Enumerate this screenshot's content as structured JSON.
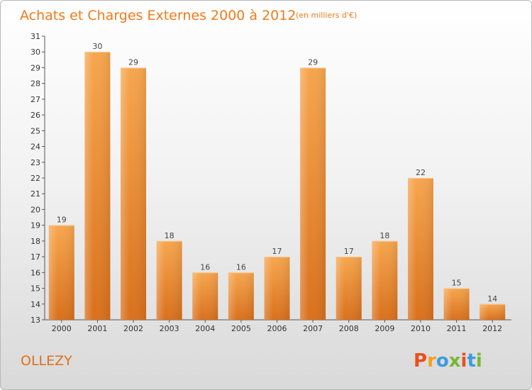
{
  "chart_data": {
    "type": "bar",
    "title": "Achats et Charges Externes 2000 à 2012",
    "subtitle": "(en milliers d'€)",
    "categories": [
      "2000",
      "2001",
      "2002",
      "2003",
      "2004",
      "2005",
      "2006",
      "2007",
      "2008",
      "2009",
      "2010",
      "2011",
      "2012"
    ],
    "values": [
      19,
      30,
      29,
      18,
      16,
      16,
      17,
      29,
      17,
      18,
      22,
      15,
      14
    ],
    "ylim": [
      13,
      31
    ],
    "yticks": [
      "13",
      "14",
      "15",
      "16",
      "17",
      "18",
      "19",
      "20",
      "21",
      "22",
      "23",
      "24",
      "25",
      "26",
      "27",
      "28",
      "29",
      "30",
      "31"
    ],
    "xlabel": "",
    "ylabel": "",
    "grid": false,
    "bar_color": "#f08a30"
  },
  "footer": {
    "commune": "OLLEZY",
    "brand": "Proxiti",
    "brand_colors": [
      "#e8501e",
      "#f5a01e",
      "#3c9be0",
      "#78b832",
      "#e8501e",
      "#3c9be0",
      "#78b832"
    ]
  }
}
